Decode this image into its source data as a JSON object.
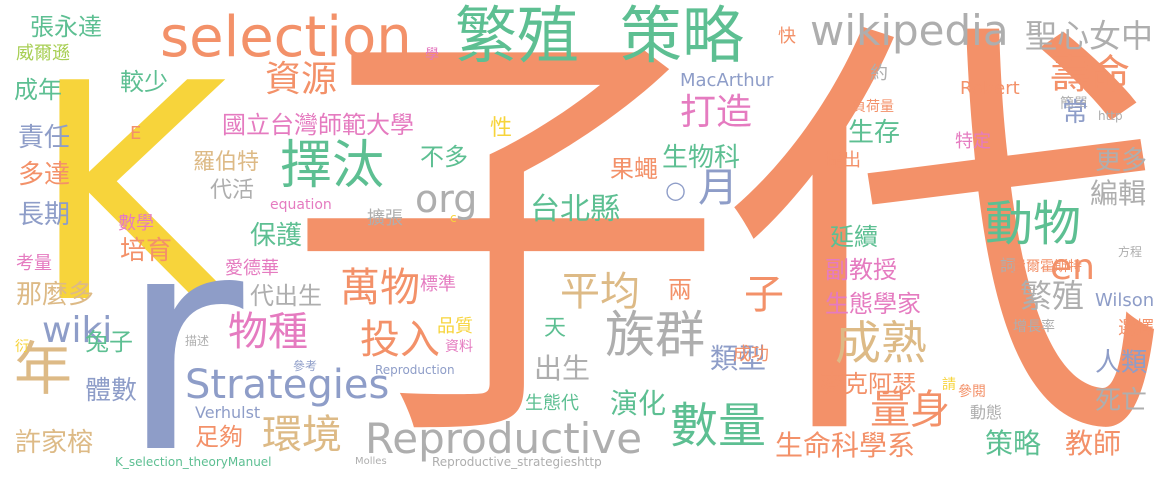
{
  "palette": {
    "orange": "#F39169",
    "green": "#5DBF92",
    "gray": "#AEAEAE",
    "slate": "#8E9DC8",
    "pink": "#E57BC0",
    "yellow": "#F7D43B",
    "lime": "#A8CF55",
    "tan": "#DDBA86"
  },
  "words": [
    {
      "text": "子代"
    },
    {
      "text": "K"
    },
    {
      "text": "r"
    },
    {
      "text": "繁殖"
    },
    {
      "text": "策略"
    },
    {
      "text": "selection"
    },
    {
      "text": "wikipedia"
    },
    {
      "text": "聖心女中"
    },
    {
      "text": "族群"
    },
    {
      "text": "擇汰"
    },
    {
      "text": "Reproductive"
    },
    {
      "text": "成熟"
    },
    {
      "text": "數量"
    },
    {
      "text": "動物"
    },
    {
      "text": "Strategies"
    },
    {
      "text": "環境"
    },
    {
      "text": "年"
    },
    {
      "text": "wiki"
    },
    {
      "text": "萬物"
    },
    {
      "text": "平均"
    },
    {
      "text": "投入"
    },
    {
      "text": "物種"
    },
    {
      "text": "量身"
    },
    {
      "text": "壽命"
    },
    {
      "text": "資源"
    },
    {
      "text": "打造"
    },
    {
      "text": "org"
    },
    {
      "text": "en"
    },
    {
      "text": "台北縣"
    },
    {
      "text": "國立台灣師範大學"
    },
    {
      "text": "月"
    },
    {
      "text": "○"
    },
    {
      "text": "果蠅"
    },
    {
      "text": "生物科"
    },
    {
      "text": "生存"
    },
    {
      "text": "子"
    },
    {
      "text": "繁殖"
    },
    {
      "text": "副教授"
    },
    {
      "text": "生態學家"
    },
    {
      "text": "編輯"
    },
    {
      "text": "延續"
    },
    {
      "text": "更多"
    },
    {
      "text": "人類"
    },
    {
      "text": "死亡"
    },
    {
      "text": "教師"
    },
    {
      "text": "策略"
    },
    {
      "text": "生命科學系"
    },
    {
      "text": "類型"
    },
    {
      "text": "演化"
    },
    {
      "text": "出生"
    },
    {
      "text": "麥克阿瑟"
    },
    {
      "text": "兔子"
    },
    {
      "text": "體數"
    },
    {
      "text": "許家榕"
    },
    {
      "text": "足夠"
    },
    {
      "text": "張永達"
    },
    {
      "text": "威爾遜"
    },
    {
      "text": "成年"
    },
    {
      "text": "較少"
    },
    {
      "text": "責任"
    },
    {
      "text": "多達"
    },
    {
      "text": "長期"
    },
    {
      "text": "考量"
    },
    {
      "text": "那麼多"
    },
    {
      "text": "衍"
    },
    {
      "text": "數學"
    },
    {
      "text": "培育"
    },
    {
      "text": "保護"
    },
    {
      "text": "代活"
    },
    {
      "text": "羅伯特"
    },
    {
      "text": "愛德華"
    },
    {
      "text": "代出生"
    },
    {
      "text": "不多"
    },
    {
      "text": "性"
    },
    {
      "text": "天"
    },
    {
      "text": "兩"
    },
    {
      "text": "品質"
    },
    {
      "text": "資料"
    },
    {
      "text": "標準"
    },
    {
      "text": "擴張"
    },
    {
      "text": "equation"
    },
    {
      "text": "c"
    },
    {
      "text": "描述"
    },
    {
      "text": "參考"
    },
    {
      "text": "Reproduction"
    },
    {
      "text": "Verhulst"
    },
    {
      "text": "K_selection_theoryManuel"
    },
    {
      "text": "Molles"
    },
    {
      "text": "Reproductive_strategieshttp"
    },
    {
      "text": "生態代"
    },
    {
      "text": "成功"
    },
    {
      "text": "MacArthur"
    },
    {
      "text": "Robert"
    },
    {
      "text": "約"
    },
    {
      "text": "快"
    },
    {
      "text": "學"
    },
    {
      "text": "負荷量"
    },
    {
      "text": "特定"
    },
    {
      "text": "提出"
    },
    {
      "text": "簡單"
    },
    {
      "text": "http"
    },
    {
      "text": "常"
    },
    {
      "text": "方程"
    },
    {
      "text": "詞"
    },
    {
      "text": "費爾霍斯特"
    },
    {
      "text": "Wilson"
    },
    {
      "text": "增長率"
    },
    {
      "text": "選擇"
    },
    {
      "text": "請"
    },
    {
      "text": "參閱"
    },
    {
      "text": "動態"
    },
    {
      "text": "E"
    }
  ]
}
